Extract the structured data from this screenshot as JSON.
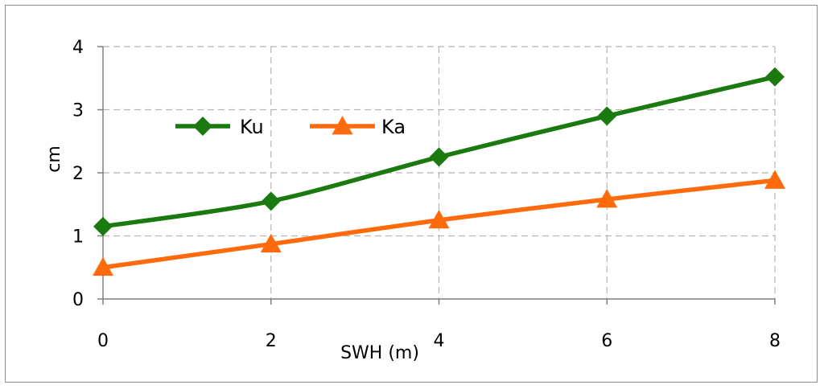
{
  "chart_data": {
    "type": "line",
    "title": "",
    "xlabel": "SWH (m)",
    "ylabel": "cm",
    "x": [
      0,
      2,
      4,
      6,
      8
    ],
    "xlim": [
      0,
      8
    ],
    "ylim": [
      0,
      4
    ],
    "x_ticks": [
      "0",
      "2",
      "4",
      "6",
      "8"
    ],
    "y_ticks": [
      "0",
      "1",
      "2",
      "3",
      "4"
    ],
    "grid": true,
    "legend_position": "top-left",
    "series": [
      {
        "name": "Ku",
        "values": [
          1.15,
          1.55,
          2.25,
          2.9,
          3.52
        ],
        "color": "#1a7a10",
        "marker": "diamond"
      },
      {
        "name": "Ka",
        "values": [
          0.5,
          0.87,
          1.25,
          1.58,
          1.88
        ],
        "color": "#ff6a0d",
        "marker": "triangle"
      }
    ]
  }
}
